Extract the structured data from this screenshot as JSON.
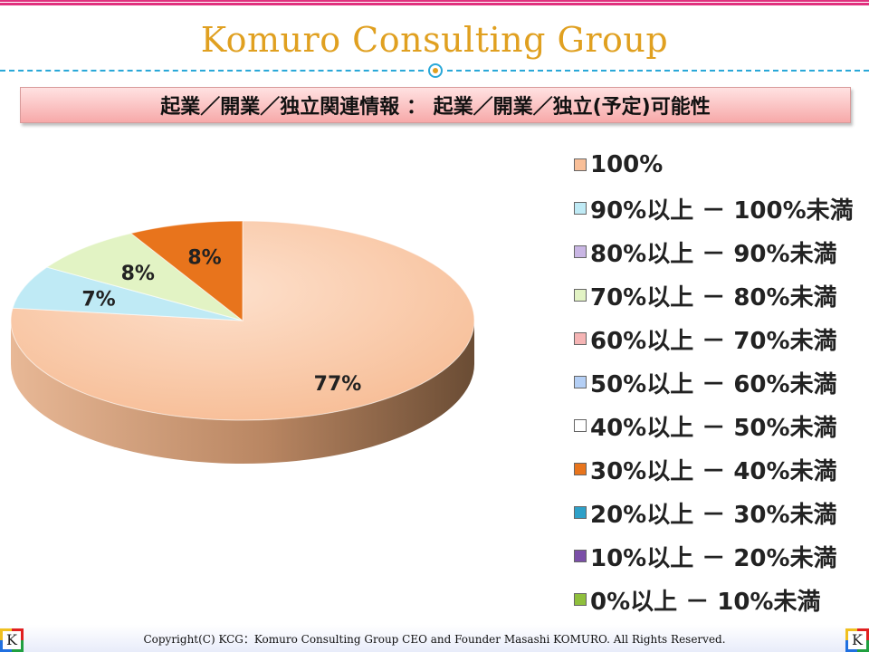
{
  "header": {
    "brand": "Komuro Consulting Group",
    "subtitle": "起業／開業／独立関連情報 ： 起業／開業／独立(予定)可能性"
  },
  "chart_data": {
    "type": "pie",
    "style": "3d",
    "labels": [
      "100%",
      "90%以上 － 100%未満",
      "80%以上 － 90%未満",
      "70%以上 － 80%未満",
      "60%以上 － 70%未満",
      "50%以上 － 60%未満",
      "40%以上 － 50%未満",
      "30%以上 － 40%未満",
      "20%以上 － 30%未満",
      "10%以上 － 20%未満",
      "0%以上 － 10%未満"
    ],
    "values": [
      77,
      7,
      0,
      8,
      0,
      0,
      0,
      8,
      0,
      0,
      0
    ],
    "data_labels": [
      "77%",
      "7%",
      "",
      "8%",
      "",
      "",
      "",
      "8%",
      "",
      "",
      ""
    ],
    "colors": [
      "#f9bf98",
      "#bfeaf5",
      "#c9b6e4",
      "#e2f3c4",
      "#f5b4b4",
      "#b4cff5",
      "#ffffff",
      "#e8741c",
      "#2ea0c8",
      "#7b4fa8",
      "#8fbf3c"
    ],
    "legend_position": "right"
  },
  "footer": {
    "copyright": "Copyright(C) KCG：Komuro Consulting Group CEO and Founder Masashi KOMURO. All Rights Reserved.",
    "logo_letter": "K"
  }
}
